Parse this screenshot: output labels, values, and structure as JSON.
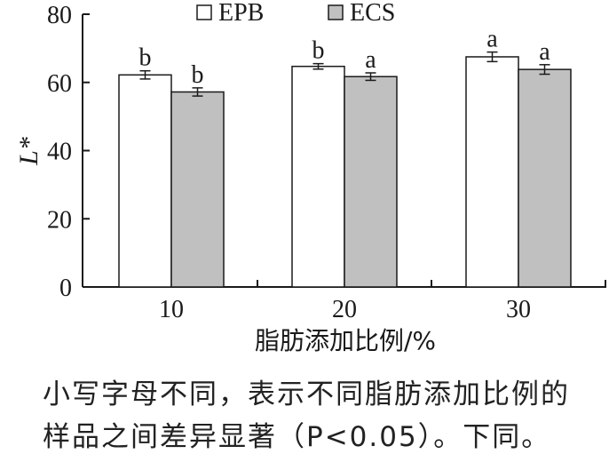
{
  "chart_data": {
    "type": "bar",
    "categories": [
      "10",
      "20",
      "30"
    ],
    "series": [
      {
        "name": "EPB",
        "values": [
          62.2,
          64.7,
          67.5
        ],
        "errors": [
          1.2,
          0.8,
          1.4
        ],
        "letters": [
          "b",
          "b",
          "a"
        ],
        "color": "#ffffff"
      },
      {
        "name": "ECS",
        "values": [
          57.2,
          61.7,
          63.8
        ],
        "errors": [
          1.2,
          1.1,
          1.4
        ],
        "letters": [
          "b",
          "a",
          "a"
        ],
        "color": "#c0c0c0"
      }
    ],
    "xlabel": "脂肪添加比例/%",
    "ylabel": "L*",
    "ylim": [
      0,
      80
    ],
    "yticks": [
      "0",
      "20",
      "40",
      "60",
      "80"
    ],
    "legend_position": "top",
    "grid": false
  },
  "caption": {
    "line1": "小写字母不同，表示不同脂肪添加比例的",
    "line2": "样品之间差异显著（P<0.05）。下同。"
  }
}
